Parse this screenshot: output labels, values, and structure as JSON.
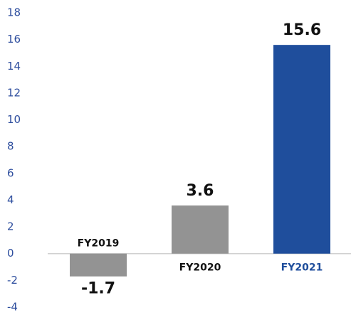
{
  "chart_data": {
    "type": "bar",
    "categories": [
      "FY2019",
      "FY2020",
      "FY2021"
    ],
    "values": [
      -1.7,
      3.6,
      15.6
    ],
    "colors": [
      "#939393",
      "#939393",
      "#1f4e9c"
    ],
    "category_label_colors": [
      "#111111",
      "#111111",
      "#1f4e9c"
    ],
    "ylim": [
      -4,
      18
    ],
    "yticks": [
      -4,
      -2,
      0,
      2,
      4,
      6,
      8,
      10,
      12,
      14,
      16,
      18
    ],
    "grid": false
  }
}
